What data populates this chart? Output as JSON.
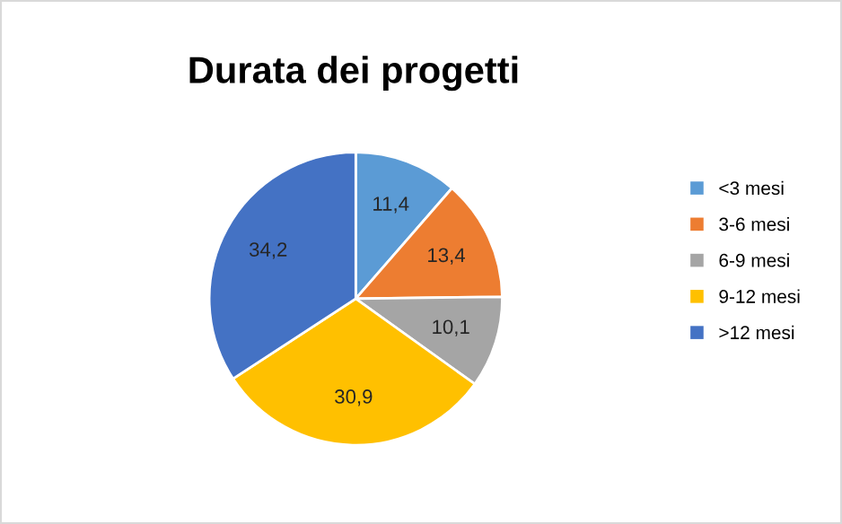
{
  "chart_data": {
    "type": "pie",
    "title": "Durata dei progetti",
    "categories": [
      "<3 mesi",
      "3-6 mesi",
      "6-9 mesi",
      "9-12 mesi",
      ">12 mesi"
    ],
    "values": [
      11.4,
      13.4,
      10.1,
      30.9,
      34.2
    ],
    "colors": [
      "#5b9bd5",
      "#ed7d31",
      "#a5a5a5",
      "#ffc000",
      "#4472c4"
    ],
    "value_labels": [
      "11,4",
      "13,4",
      "10,1",
      "30,9",
      "34,2"
    ],
    "legend": "right"
  }
}
